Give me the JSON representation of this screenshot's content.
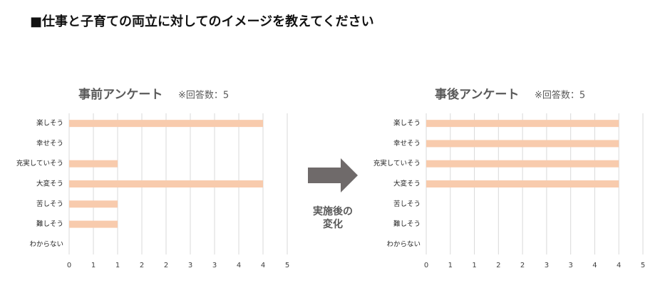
{
  "page_title": "■仕事と子育ての両立に対してのイメージを教えてください",
  "arrow_label": [
    "実施後の",
    "変化"
  ],
  "chart_data": [
    {
      "type": "bar",
      "orientation": "horizontal",
      "title": "事前アンケート",
      "subtitle": "※回答数：5",
      "categories": [
        "楽しそう",
        "幸せそう",
        "充実していそう",
        "大変そう",
        "苦しそう",
        "難しそう",
        "わからない"
      ],
      "values": [
        4,
        0,
        1,
        4,
        1,
        1,
        0
      ],
      "color": "#f8cbad",
      "grid": true,
      "xlim": [
        0,
        4.5
      ],
      "xticks": [
        0,
        {
          "value": 0.5,
          "label": "1"
        },
        1,
        {
          "value": 1.5,
          "label": "2"
        },
        2,
        {
          "value": 2.5,
          "label": "3"
        },
        3,
        {
          "value": 3.5,
          "label": "4"
        },
        4,
        {
          "value": 4.5,
          "label": "5"
        }
      ]
    },
    {
      "type": "bar",
      "orientation": "horizontal",
      "title": "事後アンケート",
      "subtitle": "※回答数：5",
      "categories": [
        "楽しそう",
        "幸せそう",
        "充実していそう",
        "大変そう",
        "苦しそう",
        "難しそう",
        "わからない"
      ],
      "values": [
        4,
        4,
        4,
        4,
        0,
        0,
        0
      ],
      "color": "#f8cbad",
      "grid": true,
      "xlim": [
        0,
        4.5
      ],
      "xticks": [
        0,
        {
          "value": 0.5,
          "label": "1"
        },
        1,
        {
          "value": 1.5,
          "label": "2"
        },
        2,
        {
          "value": 2.5,
          "label": "3"
        },
        3,
        {
          "value": 3.5,
          "label": "4"
        },
        4,
        {
          "value": 4.5,
          "label": "5"
        }
      ]
    }
  ]
}
